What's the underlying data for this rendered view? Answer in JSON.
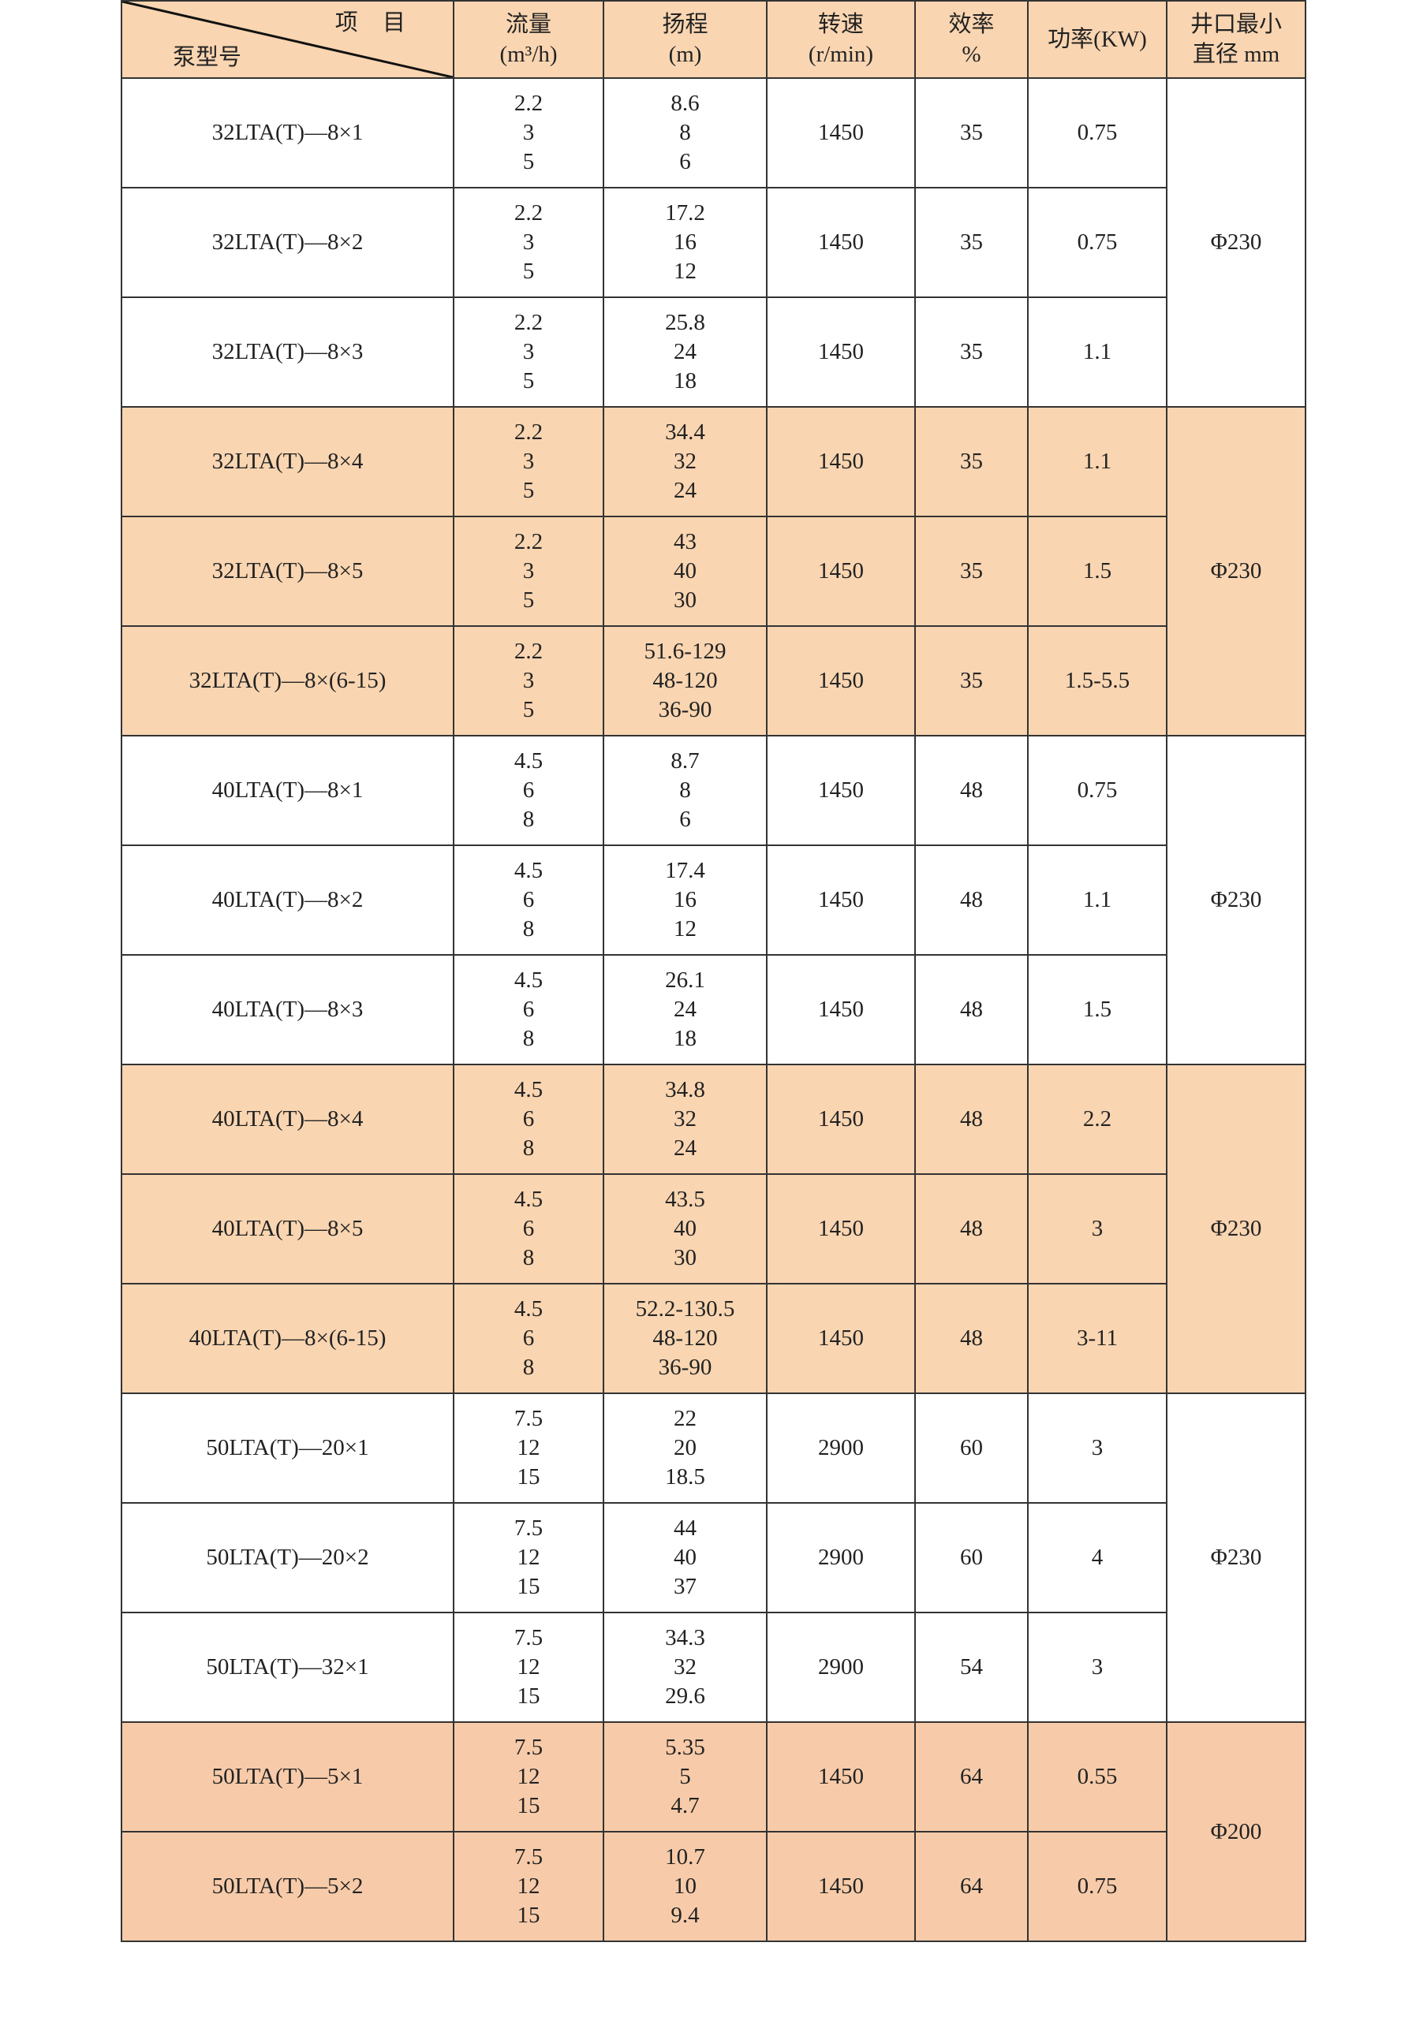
{
  "header": {
    "item_label": "项 目",
    "model_label": "泵型号",
    "flow": [
      "流量",
      "(m³/h)"
    ],
    "head": [
      "扬程",
      "(m)"
    ],
    "speed": [
      "转速",
      "(r/min)"
    ],
    "efficiency": [
      "效率",
      "%"
    ],
    "power": "功率(KW)",
    "diameter": [
      "井口最小",
      "直径 mm"
    ]
  },
  "rows": [
    {
      "model": "32LTA(T)—8×1",
      "flow": [
        "2.2",
        "3",
        "5"
      ],
      "head": [
        "8.6",
        "8",
        "6"
      ],
      "speed": "1450",
      "eff": "35",
      "power": "0.75"
    },
    {
      "model": "32LTA(T)—8×2",
      "flow": [
        "2.2",
        "3",
        "5"
      ],
      "head": [
        "17.2",
        "16",
        "12"
      ],
      "speed": "1450",
      "eff": "35",
      "power": "0.75"
    },
    {
      "model": "32LTA(T)—8×3",
      "flow": [
        "2.2",
        "3",
        "5"
      ],
      "head": [
        "25.8",
        "24",
        "18"
      ],
      "speed": "1450",
      "eff": "35",
      "power": "1.1"
    },
    {
      "model": "32LTA(T)—8×4",
      "flow": [
        "2.2",
        "3",
        "5"
      ],
      "head": [
        "34.4",
        "32",
        "24"
      ],
      "speed": "1450",
      "eff": "35",
      "power": "1.1"
    },
    {
      "model": "32LTA(T)—8×5",
      "flow": [
        "2.2",
        "3",
        "5"
      ],
      "head": [
        "43",
        "40",
        "30"
      ],
      "speed": "1450",
      "eff": "35",
      "power": "1.5"
    },
    {
      "model": "32LTA(T)—8×(6-15)",
      "flow": [
        "2.2",
        "3",
        "5"
      ],
      "head": [
        "51.6-129",
        "48-120",
        "36-90"
      ],
      "speed": "1450",
      "eff": "35",
      "power": "1.5-5.5"
    },
    {
      "model": "40LTA(T)—8×1",
      "flow": [
        "4.5",
        "6",
        "8"
      ],
      "head": [
        "8.7",
        "8",
        "6"
      ],
      "speed": "1450",
      "eff": "48",
      "power": "0.75"
    },
    {
      "model": "40LTA(T)—8×2",
      "flow": [
        "4.5",
        "6",
        "8"
      ],
      "head": [
        "17.4",
        "16",
        "12"
      ],
      "speed": "1450",
      "eff": "48",
      "power": "1.1"
    },
    {
      "model": "40LTA(T)—8×3",
      "flow": [
        "4.5",
        "6",
        "8"
      ],
      "head": [
        "26.1",
        "24",
        "18"
      ],
      "speed": "1450",
      "eff": "48",
      "power": "1.5"
    },
    {
      "model": "40LTA(T)—8×4",
      "flow": [
        "4.5",
        "6",
        "8"
      ],
      "head": [
        "34.8",
        "32",
        "24"
      ],
      "speed": "1450",
      "eff": "48",
      "power": "2.2"
    },
    {
      "model": "40LTA(T)—8×5",
      "flow": [
        "4.5",
        "6",
        "8"
      ],
      "head": [
        "43.5",
        "40",
        "30"
      ],
      "speed": "1450",
      "eff": "48",
      "power": "3"
    },
    {
      "model": "40LTA(T)—8×(6-15)",
      "flow": [
        "4.5",
        "6",
        "8"
      ],
      "head": [
        "52.2-130.5",
        "48-120",
        "36-90"
      ],
      "speed": "1450",
      "eff": "48",
      "power": "3-11"
    },
    {
      "model": "50LTA(T)—20×1",
      "flow": [
        "7.5",
        "12",
        "15"
      ],
      "head": [
        "22",
        "20",
        "18.5"
      ],
      "speed": "2900",
      "eff": "60",
      "power": "3"
    },
    {
      "model": "50LTA(T)—20×2",
      "flow": [
        "7.5",
        "12",
        "15"
      ],
      "head": [
        "44",
        "40",
        "37"
      ],
      "speed": "2900",
      "eff": "60",
      "power": "4"
    },
    {
      "model": "50LTA(T)—32×1",
      "flow": [
        "7.5",
        "12",
        "15"
      ],
      "head": [
        "34.3",
        "32",
        "29.6"
      ],
      "speed": "2900",
      "eff": "54",
      "power": "3"
    },
    {
      "model": "50LTA(T)—5×1",
      "flow": [
        "7.5",
        "12",
        "15"
      ],
      "head": [
        "5.35",
        "5",
        "4.7"
      ],
      "speed": "1450",
      "eff": "64",
      "power": "0.55"
    },
    {
      "model": "50LTA(T)—5×2",
      "flow": [
        "7.5",
        "12",
        "15"
      ],
      "head": [
        "10.7",
        "10",
        "9.4"
      ],
      "speed": "1450",
      "eff": "64",
      "power": "0.75"
    }
  ],
  "groups": [
    {
      "diameter": "Φ230",
      "span": 3,
      "color": "#FFFFFF"
    },
    {
      "diameter": "Φ230",
      "span": 3,
      "color": "#F9D5B1"
    },
    {
      "diameter": "Φ230",
      "span": 3,
      "color": "#FFFFFF"
    },
    {
      "diameter": "Φ230",
      "span": 3,
      "color": "#F9D5B1"
    },
    {
      "diameter": "Φ230",
      "span": 3,
      "color": "#FFFFFF"
    },
    {
      "diameter": "Φ200",
      "span": 2,
      "color": "#F7CBA9"
    }
  ],
  "colors": {
    "header": "#F9D5B1",
    "band": "#F9D5B1",
    "band_dark": "#F7CBA9",
    "border": "#333333"
  }
}
